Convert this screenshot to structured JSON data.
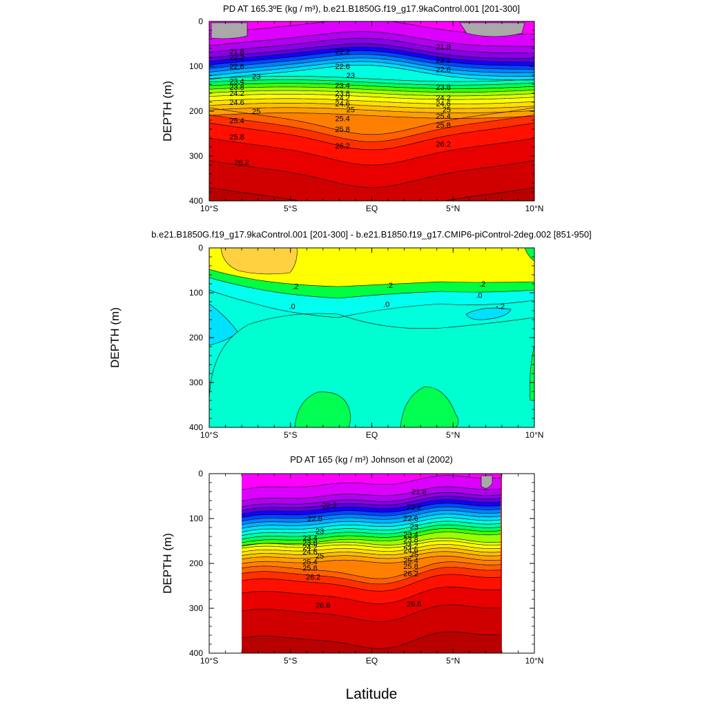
{
  "figure": {
    "xlabel": "Latitude",
    "x_ticks": [
      "10°S",
      "5°S",
      "EQ",
      "5°N",
      "10°N"
    ],
    "y_ticks": [
      "0",
      "100",
      "200",
      "300",
      "400"
    ]
  },
  "chart_data": [
    {
      "type": "heatmap",
      "subtype": "filled-contour",
      "title": "PD AT 165.3ºE (kg / m³), b.e21.B1850G.f19_g17.9kaControl.001 [201-300]",
      "xlabel": "",
      "ylabel": "DEPTH (m)",
      "x": [
        -10,
        10
      ],
      "xlim": [
        -10,
        10
      ],
      "ylim": [
        400,
        0
      ],
      "y_direction": "depth-increasing-downward",
      "contour_levels": [
        21.8,
        22.2,
        22.6,
        23,
        23.4,
        23.8,
        24.2,
        24.6,
        25,
        25.4,
        25.8,
        26.2
      ],
      "contour_labels": [
        {
          "lat": -8.3,
          "depth": 67,
          "text": "21.8"
        },
        {
          "lat": -8.3,
          "depth": 80,
          "text": "22.2"
        },
        {
          "lat": -8.3,
          "depth": 100,
          "text": "22.6"
        },
        {
          "lat": -7.1,
          "depth": 122,
          "text": "23"
        },
        {
          "lat": -8.3,
          "depth": 133,
          "text": "23.4"
        },
        {
          "lat": -8.3,
          "depth": 146,
          "text": "23.8"
        },
        {
          "lat": -8.3,
          "depth": 160,
          "text": "24.2"
        },
        {
          "lat": -8.3,
          "depth": 180,
          "text": "24.6"
        },
        {
          "lat": -7.1,
          "depth": 200,
          "text": "25"
        },
        {
          "lat": -8.3,
          "depth": 221,
          "text": "25.4"
        },
        {
          "lat": -8.3,
          "depth": 257,
          "text": "25.8"
        },
        {
          "lat": -8.0,
          "depth": 314,
          "text": "26.2"
        },
        {
          "lat": -1.8,
          "depth": 67,
          "text": "22.2"
        },
        {
          "lat": -1.8,
          "depth": 100,
          "text": "22.6"
        },
        {
          "lat": -1.3,
          "depth": 120,
          "text": "23"
        },
        {
          "lat": -1.8,
          "depth": 142,
          "text": "23.4"
        },
        {
          "lat": -1.8,
          "depth": 160,
          "text": "23.8"
        },
        {
          "lat": -1.8,
          "depth": 170,
          "text": "24.2"
        },
        {
          "lat": -1.8,
          "depth": 183,
          "text": "24.6"
        },
        {
          "lat": -1.3,
          "depth": 196,
          "text": "25"
        },
        {
          "lat": -1.8,
          "depth": 216,
          "text": "25.4"
        },
        {
          "lat": -1.8,
          "depth": 240,
          "text": "25.8"
        },
        {
          "lat": -1.8,
          "depth": 277,
          "text": "26.2"
        },
        {
          "lat": 4.4,
          "depth": 56,
          "text": "21.8"
        },
        {
          "lat": 4.4,
          "depth": 86,
          "text": "22.2"
        },
        {
          "lat": 4.4,
          "depth": 107,
          "text": "22.6"
        },
        {
          "lat": 4.4,
          "depth": 146,
          "text": "23.8"
        },
        {
          "lat": 4.4,
          "depth": 170,
          "text": "24.2"
        },
        {
          "lat": 4.4,
          "depth": 183,
          "text": "24.6"
        },
        {
          "lat": 4.6,
          "depth": 196,
          "text": "25"
        },
        {
          "lat": 4.4,
          "depth": 211,
          "text": "25.4"
        },
        {
          "lat": 4.4,
          "depth": 231,
          "text": "25.8"
        },
        {
          "lat": 4.4,
          "depth": 273,
          "text": "26.2"
        }
      ]
    },
    {
      "type": "heatmap",
      "subtype": "filled-contour",
      "title": "b.e21.B1850G.f19_g17.9kaControl.001 [201-300] - b.e21.B1850.f19_g17.CMIP6-piControl-2deg.002 [851-950]",
      "xlabel": "",
      "ylabel": "DEPTH (m)",
      "xlim": [
        -10,
        10
      ],
      "ylim": [
        400,
        0
      ],
      "contour_levels": [
        -0.2,
        0,
        0.2
      ],
      "contour_labels": [
        {
          "lat": -4.7,
          "depth": 85,
          "text": ".2"
        },
        {
          "lat": 1.1,
          "depth": 83,
          "text": ".2"
        },
        {
          "lat": 6.8,
          "depth": 80,
          "text": ".2"
        },
        {
          "lat": -4.9,
          "depth": 130,
          "text": ".0"
        },
        {
          "lat": 0.9,
          "depth": 125,
          "text": ".0"
        },
        {
          "lat": 6.6,
          "depth": 105,
          "text": ".0"
        },
        {
          "lat": 7.9,
          "depth": 130,
          "text": "-.2"
        }
      ]
    },
    {
      "type": "heatmap",
      "subtype": "filled-contour",
      "title": "PD AT 165 (kg / m³) Johnson et al (2002)",
      "xlabel": "Latitude",
      "ylabel": "DEPTH (m)",
      "xlim": [
        -10,
        10
      ],
      "ylim": [
        400,
        0
      ],
      "data_extent_lat": [
        -8,
        8
      ],
      "contour_levels": [
        21.8,
        22.2,
        22.6,
        23,
        23.4,
        23.8,
        24.2,
        24.6,
        25,
        25.4,
        25.8,
        26.2,
        26.6
      ],
      "contour_labels": [
        {
          "lat": -2.6,
          "depth": 70,
          "text": "22.2"
        },
        {
          "lat": -3.5,
          "depth": 100,
          "text": "22.6"
        },
        {
          "lat": -3.2,
          "depth": 128,
          "text": "23"
        },
        {
          "lat": -3.8,
          "depth": 143,
          "text": "23.4"
        },
        {
          "lat": -3.8,
          "depth": 154,
          "text": "23.8"
        },
        {
          "lat": -3.8,
          "depth": 164,
          "text": "24.2"
        },
        {
          "lat": -3.8,
          "depth": 174,
          "text": "24.6"
        },
        {
          "lat": -3.2,
          "depth": 183,
          "text": "25"
        },
        {
          "lat": -3.8,
          "depth": 196,
          "text": "25.4"
        },
        {
          "lat": -3.8,
          "depth": 210,
          "text": "25.8"
        },
        {
          "lat": -3.6,
          "depth": 230,
          "text": "26.2"
        },
        {
          "lat": -3.0,
          "depth": 293,
          "text": "26.6"
        },
        {
          "lat": 2.9,
          "depth": 40,
          "text": "21.8"
        },
        {
          "lat": 2.6,
          "depth": 74,
          "text": "22.2"
        },
        {
          "lat": 2.4,
          "depth": 99,
          "text": "22.6"
        },
        {
          "lat": 2.6,
          "depth": 118,
          "text": "23"
        },
        {
          "lat": 2.4,
          "depth": 135,
          "text": "23.4"
        },
        {
          "lat": 2.4,
          "depth": 147,
          "text": "23.8"
        },
        {
          "lat": 2.4,
          "depth": 160,
          "text": "24.2"
        },
        {
          "lat": 2.4,
          "depth": 170,
          "text": "24.6"
        },
        {
          "lat": 2.6,
          "depth": 180,
          "text": "25"
        },
        {
          "lat": 2.4,
          "depth": 193,
          "text": "25.4"
        },
        {
          "lat": 2.4,
          "depth": 206,
          "text": "25.8"
        },
        {
          "lat": 2.4,
          "depth": 222,
          "text": "26.2"
        },
        {
          "lat": 2.6,
          "depth": 290,
          "text": "26.6"
        }
      ]
    }
  ],
  "colors": {
    "land_gray": "#a9a9a9",
    "pd_scale": [
      "#ff00ff",
      "#dc00ff",
      "#b000f0",
      "#8a00e6",
      "#5a00e0",
      "#1400ff",
      "#0046ff",
      "#0082ff",
      "#00b4ff",
      "#00dcff",
      "#00ffe0",
      "#00ffaa",
      "#00ff60",
      "#40ff00",
      "#9cff00",
      "#e0ff00",
      "#ffff00",
      "#ffe000",
      "#ffc000",
      "#ffa000",
      "#ff8000",
      "#ff6000",
      "#ff3000",
      "#ff1000",
      "#e80000",
      "#d00000",
      "#b80000"
    ],
    "diff_scale": {
      "gt_0.4": "#ffd040",
      "0.2_0.4": "#ffff00",
      "0_0.2": "#00ff40",
      "-0.2_0": "#00ffee",
      "lt_-0.2": "#00e0ff",
      "cyan_fill": "#00ffdc"
    }
  }
}
